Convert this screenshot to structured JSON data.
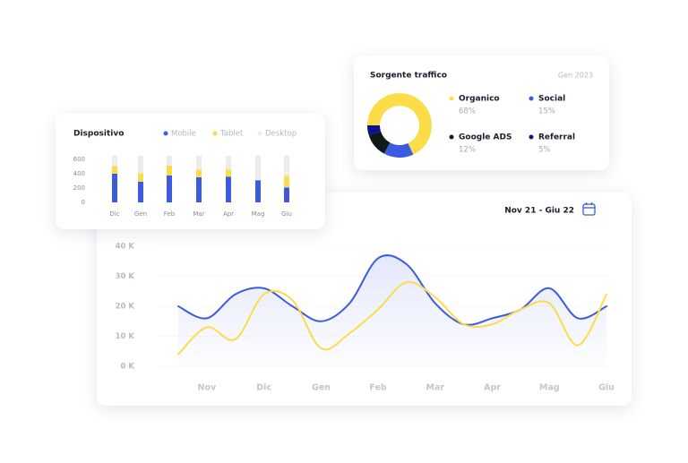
{
  "chart_data": [
    {
      "type": "bar",
      "title": "Dispositivo",
      "stacked": true,
      "categories": [
        "Dic",
        "Gen",
        "Feb",
        "Mar",
        "Apr",
        "Mag",
        "Giu"
      ],
      "series": [
        {
          "name": "Mobile",
          "color": "#3d5be0",
          "values": [
            400,
            290,
            375,
            350,
            360,
            310,
            210
          ]
        },
        {
          "name": "Tablet",
          "color": "#fddc4a",
          "values": [
            110,
            120,
            140,
            110,
            100,
            0,
            160
          ]
        },
        {
          "name": "Desktop",
          "color": "#ececee",
          "values": [
            140,
            240,
            135,
            190,
            190,
            340,
            280
          ]
        }
      ],
      "ylim": [
        0,
        650
      ],
      "yticks": [
        0,
        200,
        400,
        600
      ],
      "grid": false
    },
    {
      "type": "pie",
      "title": "Sorgente traffico",
      "subtitle": "Gen 2023",
      "donut": true,
      "categories": [
        "Organico",
        "Social",
        "Google ADS",
        "Referral"
      ],
      "values": [
        68,
        15,
        12,
        5
      ],
      "value_labels": [
        "68%",
        "15%",
        "12%",
        "5%"
      ],
      "colors": [
        "#fddc4a",
        "#3d5be0",
        "#101a16",
        "#0c1389"
      ]
    },
    {
      "type": "line",
      "subtitle": "Nov 21 - Giu 22",
      "categories": [
        null,
        "Nov",
        null,
        "Dic",
        null,
        "Gen",
        null,
        "Feb",
        null,
        "Mar",
        null,
        "Apr",
        null,
        "Mag",
        null,
        "Giu"
      ],
      "series": [
        {
          "name": "Blue",
          "color": "#3d5be0",
          "values": [
            20000,
            16000,
            24000,
            26000,
            20000,
            15000,
            21000,
            36000,
            34000,
            21000,
            14000,
            16000,
            19000,
            26000,
            16000,
            20000
          ]
        },
        {
          "name": "Yellow",
          "color": "#fddc4a",
          "values": [
            4000,
            13000,
            9000,
            24000,
            22000,
            6000,
            11000,
            19000,
            28000,
            23000,
            14000,
            14000,
            19000,
            21000,
            7000,
            24000
          ]
        }
      ],
      "ylim": [
        0,
        40000
      ],
      "yticks": [
        {
          "value": 0,
          "label": "0 K"
        },
        {
          "value": 10000,
          "label": "10 K"
        },
        {
          "value": 20000,
          "label": "20 K"
        },
        {
          "value": 30000,
          "label": "30 K"
        },
        {
          "value": 40000,
          "label": "40 K"
        }
      ],
      "grid": true
    }
  ]
}
